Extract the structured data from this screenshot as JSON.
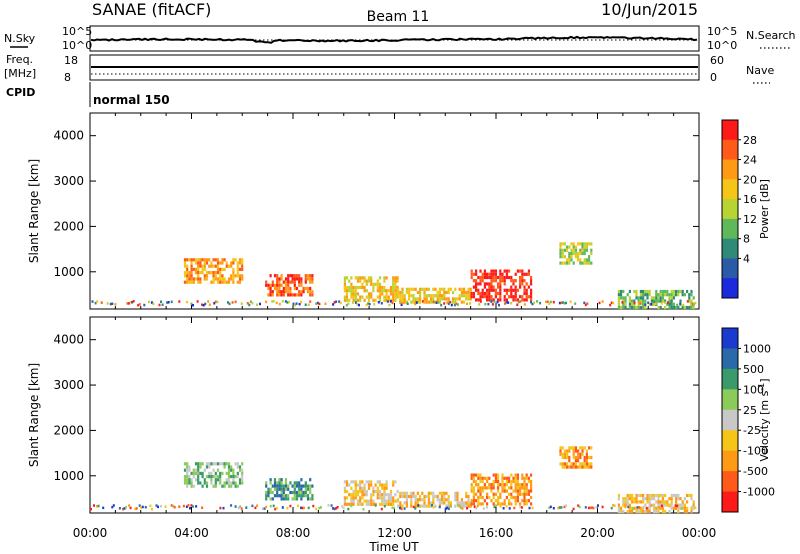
{
  "header": {
    "station": "SANAE (fitACF)",
    "beam": "Beam 11",
    "date": "10/Jun/2015"
  },
  "panels": {
    "nsky_label": "N.Sky",
    "nsky_ticks": [
      "10^5",
      "10^0"
    ],
    "nsearch_label": "N.Search",
    "nsearch_ticks": [
      "10^5",
      "10^0"
    ],
    "freq_label": "Freq.",
    "freq_unit": "[MHz]",
    "freq_ticks": [
      "18",
      "8"
    ],
    "nave_label": "Nave",
    "nave_ticks": [
      "60",
      "0"
    ],
    "cpid_label": "CPID",
    "cpid_value": "normal 150"
  },
  "chart_data": [
    {
      "type": "heatmap",
      "name": "power",
      "ylabel": "Slant Range [km]",
      "xlabel": "Time UT",
      "x_ticks": [
        "00:00",
        "04:00",
        "08:00",
        "12:00",
        "16:00",
        "20:00",
        "00:00"
      ],
      "xlim_hours": [
        0,
        24
      ],
      "ylim_km": [
        180,
        4500
      ],
      "y_ticks": [
        1000,
        2000,
        3000,
        4000
      ],
      "colorbar_label": "Power [dB]",
      "colorbar_ticks": [
        "28",
        "24",
        "20",
        "16",
        "12",
        "8",
        "4"
      ],
      "colorbar_colors": [
        "#ff1a1a",
        "#ff5a1a",
        "#ff9a14",
        "#f5c518",
        "#b8d432",
        "#5fb95a",
        "#2f8a78",
        "#2a5aa8",
        "#1a2adc"
      ],
      "echo_regions": [
        {
          "t0": 3.7,
          "t1": 6.0,
          "r0": 750,
          "r1": 1300,
          "value": "20"
        },
        {
          "t0": 6.9,
          "t1": 8.8,
          "r0": 500,
          "r1": 950,
          "value": "24"
        },
        {
          "t0": 10.0,
          "t1": 12.1,
          "r0": 400,
          "r1": 900,
          "value": "16"
        },
        {
          "t0": 12.1,
          "t1": 15.0,
          "r0": 350,
          "r1": 650,
          "value": "16"
        },
        {
          "t0": 15.0,
          "t1": 17.4,
          "r0": 350,
          "r1": 1050,
          "value": "28"
        },
        {
          "t0": 18.5,
          "t1": 19.8,
          "r0": 1200,
          "r1": 1650,
          "value": "12"
        },
        {
          "t0": 20.8,
          "t1": 23.8,
          "r0": 200,
          "r1": 600,
          "value": "8"
        }
      ]
    },
    {
      "type": "heatmap",
      "name": "velocity",
      "ylabel": "Slant Range [km]",
      "xlabel": "Time UT",
      "x_ticks": [
        "00:00",
        "04:00",
        "08:00",
        "12:00",
        "16:00",
        "20:00",
        "00:00"
      ],
      "xlim_hours": [
        0,
        24
      ],
      "ylim_km": [
        180,
        4500
      ],
      "y_ticks": [
        1000,
        2000,
        3000,
        4000
      ],
      "colorbar_label": "Velocity [m s",
      "colorbar_label_sup": "-1",
      "colorbar_label_end": "]",
      "colorbar_ticks": [
        "1000",
        "500",
        "100",
        "25",
        "-25",
        "-100",
        "-500",
        "-1000"
      ],
      "colorbar_colors": [
        "#1a3ad0",
        "#2a6aa8",
        "#3a9a6a",
        "#8acb5a",
        "#c8c8c8",
        "#f5c518",
        "#ff9a14",
        "#ff5a1a",
        "#ff1a1a"
      ],
      "echo_regions": [
        {
          "t0": 3.7,
          "t1": 6.0,
          "r0": 750,
          "r1": 1300,
          "value": "25"
        },
        {
          "t0": 6.9,
          "t1": 8.8,
          "r0": 500,
          "r1": 950,
          "value": "100"
        },
        {
          "t0": 10.0,
          "t1": 12.1,
          "r0": 400,
          "r1": 900,
          "value": "-100"
        },
        {
          "t0": 12.1,
          "t1": 15.0,
          "r0": 350,
          "r1": 650,
          "value": "-100"
        },
        {
          "t0": 15.0,
          "t1": 17.4,
          "r0": 350,
          "r1": 1050,
          "value": "-500"
        },
        {
          "t0": 18.5,
          "t1": 19.8,
          "r0": 1200,
          "r1": 1650,
          "value": "-500"
        },
        {
          "t0": 20.8,
          "t1": 23.8,
          "r0": 200,
          "r1": 600,
          "value": "-100"
        }
      ]
    }
  ]
}
